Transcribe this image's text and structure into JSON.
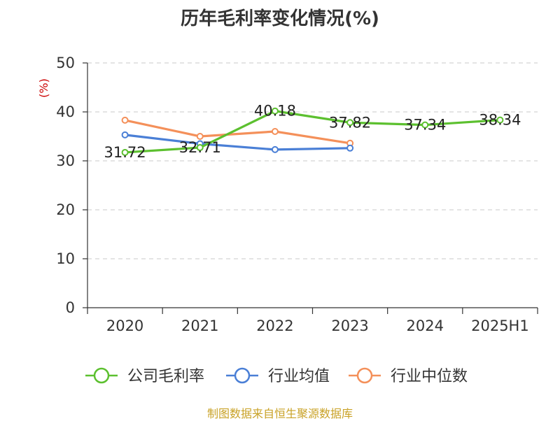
{
  "chart_data": {
    "type": "line",
    "title": "历年毛利率变化情况(%)",
    "ylabel": "(%)",
    "xlabel": "",
    "categories": [
      "2020",
      "2021",
      "2022",
      "2023",
      "2024",
      "2025H1"
    ],
    "ylim": [
      0,
      50
    ],
    "yticks": [
      0,
      10,
      20,
      30,
      40,
      50
    ],
    "grid": "horizontal dashed",
    "legend_position": "bottom",
    "series": [
      {
        "name": "公司毛利率",
        "color": "#5cc02f",
        "values": [
          31.72,
          32.71,
          40.18,
          37.82,
          37.34,
          38.34
        ],
        "labels": [
          "31.72",
          "32.71",
          "40.18",
          "37.82",
          "37.34",
          "38.34"
        ]
      },
      {
        "name": "行业均值",
        "color": "#4a7fd6",
        "values": [
          35.3,
          33.5,
          32.3,
          32.6,
          null,
          null
        ]
      },
      {
        "name": "行业中位数",
        "color": "#f4905a",
        "values": [
          38.3,
          35.0,
          36.0,
          33.6,
          null,
          null
        ]
      }
    ]
  },
  "source": "制图数据来自恒生聚源数据库"
}
